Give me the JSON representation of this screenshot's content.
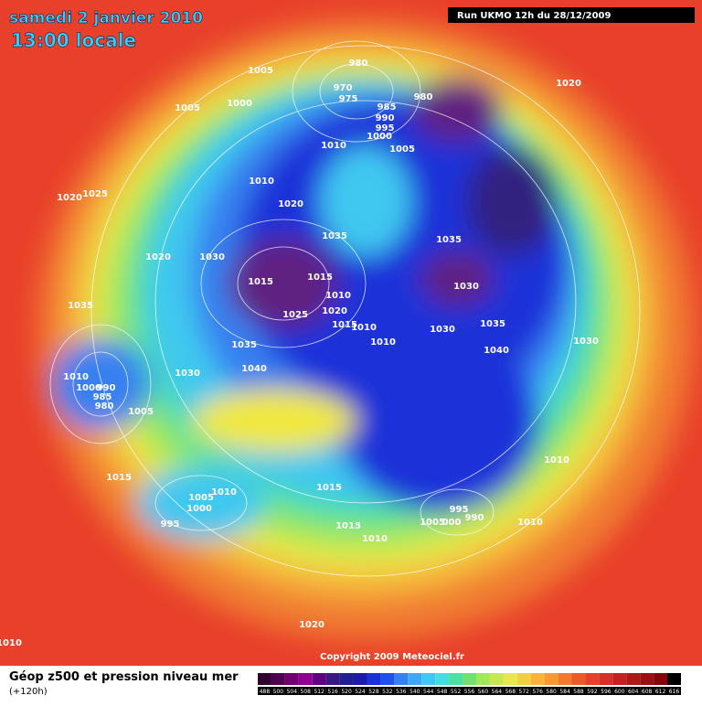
{
  "header": {
    "title": "samedi 2 janvier 2010",
    "time": "13:00 locale",
    "run": "Run UKMO 12h du 28/12/2009"
  },
  "isobar_labels": [
    "1005",
    "1005",
    "1000",
    "980",
    "970",
    "975",
    "985",
    "990",
    "995",
    "1000",
    "980",
    "1020",
    "1010",
    "1005",
    "1010",
    "1020",
    "1025",
    "1020",
    "1035",
    "1035",
    "1030",
    "1020",
    "1015",
    "1015",
    "1010",
    "1020",
    "1025",
    "1015",
    "1010",
    "1030",
    "1035",
    "1030",
    "1035",
    "1035",
    "1010",
    "1040",
    "1030",
    "1040",
    "1030",
    "1010",
    "1000",
    "990",
    "985",
    "980",
    "1005",
    "1010",
    "1015",
    "1010",
    "1005",
    "1015",
    "1000",
    "995",
    "990",
    "1005",
    "000",
    "1010",
    "995",
    "1015",
    "1010",
    "1020",
    "1010"
  ],
  "copyright": "Copyright 2009 Meteociel.fr",
  "footer": {
    "title": "Géop z500 et pression niveau mer",
    "lead": "(+120h)"
  },
  "scale": {
    "labels": [
      "488",
      "500",
      "504",
      "508",
      "512",
      "516",
      "520",
      "524",
      "528",
      "532",
      "536",
      "540",
      "544",
      "548",
      "552",
      "556",
      "560",
      "564",
      "568",
      "572",
      "576",
      "580",
      "584",
      "588",
      "592",
      "596",
      "600",
      "604",
      "608",
      "612",
      "616"
    ]
  }
}
